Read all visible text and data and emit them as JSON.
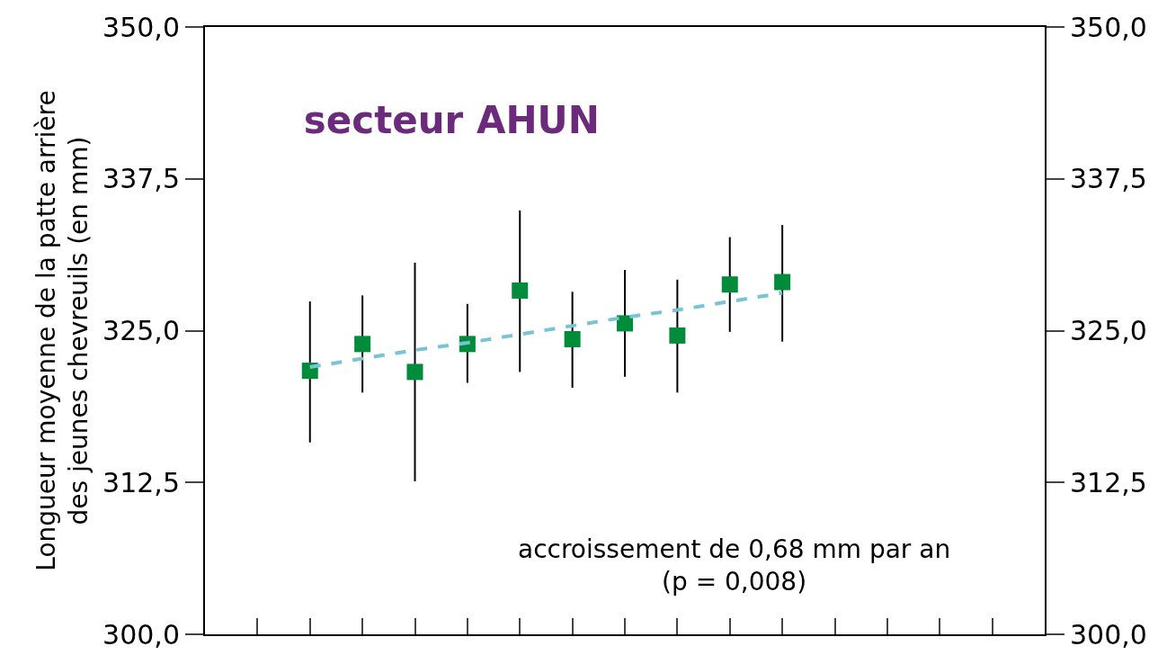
{
  "chart_data": {
    "type": "scatter",
    "title": "secteur AHUN",
    "ylabel": "Longueur moyenne de la patte arrière\ndes jeunes chevreuils (en mm)",
    "categories": [
      null,
      null,
      null,
      null,
      null,
      null,
      null,
      null,
      null,
      null,
      null,
      null,
      null,
      null,
      null
    ],
    "series": [
      {
        "color": "#008c3a",
        "marker": "square",
        "values": [
          null,
          321.7,
          323.9,
          321.6,
          323.9,
          328.3,
          324.3,
          325.6,
          324.6,
          328.8,
          329.0,
          null,
          null,
          null,
          null
        ],
        "errors": [
          null,
          [
            315.8,
            327.4
          ],
          [
            319.9,
            327.9
          ],
          [
            312.6,
            330.6
          ],
          [
            320.7,
            327.2
          ],
          [
            321.6,
            334.9
          ],
          [
            320.3,
            328.2
          ],
          [
            321.2,
            330.0
          ],
          [
            319.9,
            329.2
          ],
          [
            324.9,
            332.7
          ],
          [
            324.1,
            333.7
          ],
          null,
          null,
          null,
          null
        ]
      },
      {
        "type": "line",
        "axis": "y2",
        "color": "#79c4d4",
        "line_style": "dashed",
        "marker": "none",
        "values": [
          null,
          322.0,
          322.7,
          323.4,
          324.0,
          324.7,
          325.4,
          326.1,
          326.7,
          327.4,
          328.1,
          null,
          null,
          null,
          null
        ]
      }
    ],
    "ylim": [
      300,
      350
    ],
    "yticks": [
      {
        "value": 300,
        "label": "300,0"
      },
      {
        "value": 312.5,
        "label": "312,5"
      },
      {
        "value": 325,
        "label": "325,0"
      },
      {
        "value": 337.5,
        "label": "337,5"
      },
      {
        "value": 350,
        "label": "350,0"
      }
    ],
    "y2lim": [
      300,
      350
    ],
    "y2ticks": [
      {
        "value": 300,
        "label": "300,0"
      },
      {
        "value": 312.5,
        "label": "312,5"
      },
      {
        "value": 325,
        "label": "325,0"
      },
      {
        "value": 337.5,
        "label": "337,5"
      },
      {
        "value": 350,
        "label": "350,0"
      }
    ],
    "annotations": [
      "accroissement de 0,68 mm par an\n(p = 0,008)"
    ]
  }
}
